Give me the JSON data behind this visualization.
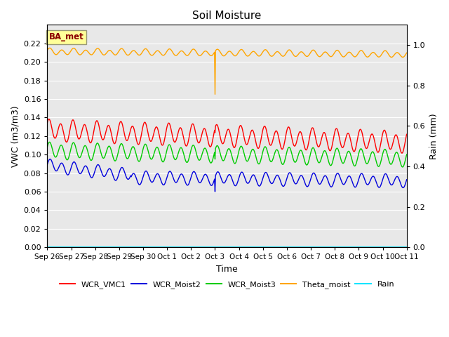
{
  "title": "Soil Moisture",
  "xlabel": "Time",
  "ylabel_left": "VWC (m3/m3)",
  "ylabel_right": "Rain (mm)",
  "ylim_left": [
    0.0,
    0.24
  ],
  "ylim_right": [
    0.0,
    1.1
  ],
  "yticks_left": [
    0.0,
    0.02,
    0.04,
    0.06,
    0.08,
    0.1,
    0.12,
    0.14,
    0.16,
    0.18,
    0.2,
    0.22
  ],
  "yticks_right": [
    0.0,
    0.2,
    0.4,
    0.6,
    0.8,
    1.0
  ],
  "xtick_labels": [
    "Sep 26",
    "Sep 27",
    "Sep 28",
    "Sep 29",
    "Sep 30",
    "Oct 1",
    "Oct 2",
    "Oct 3",
    "Oct 4",
    "Oct 5",
    "Oct 6",
    "Oct 7",
    "Oct 8",
    "Oct 9",
    "Oct 10",
    "Oct 11"
  ],
  "background_color": "#e8e8e8",
  "grid_color": "#ffffff",
  "annotation_text": "BA_met",
  "annotation_color": "#8b0000",
  "annotation_bg": "#ffff99",
  "series_colors": {
    "WCR_VMC1": "#ff0000",
    "WCR_Moist2": "#0000dd",
    "WCR_Moist3": "#00cc00",
    "Theta_moist": "#ffa500",
    "Rain": "#00e5ff"
  },
  "line_widths": {
    "WCR_VMC1": 1.0,
    "WCR_Moist2": 1.0,
    "WCR_Moist3": 1.0,
    "Theta_moist": 1.0,
    "Rain": 1.2
  }
}
